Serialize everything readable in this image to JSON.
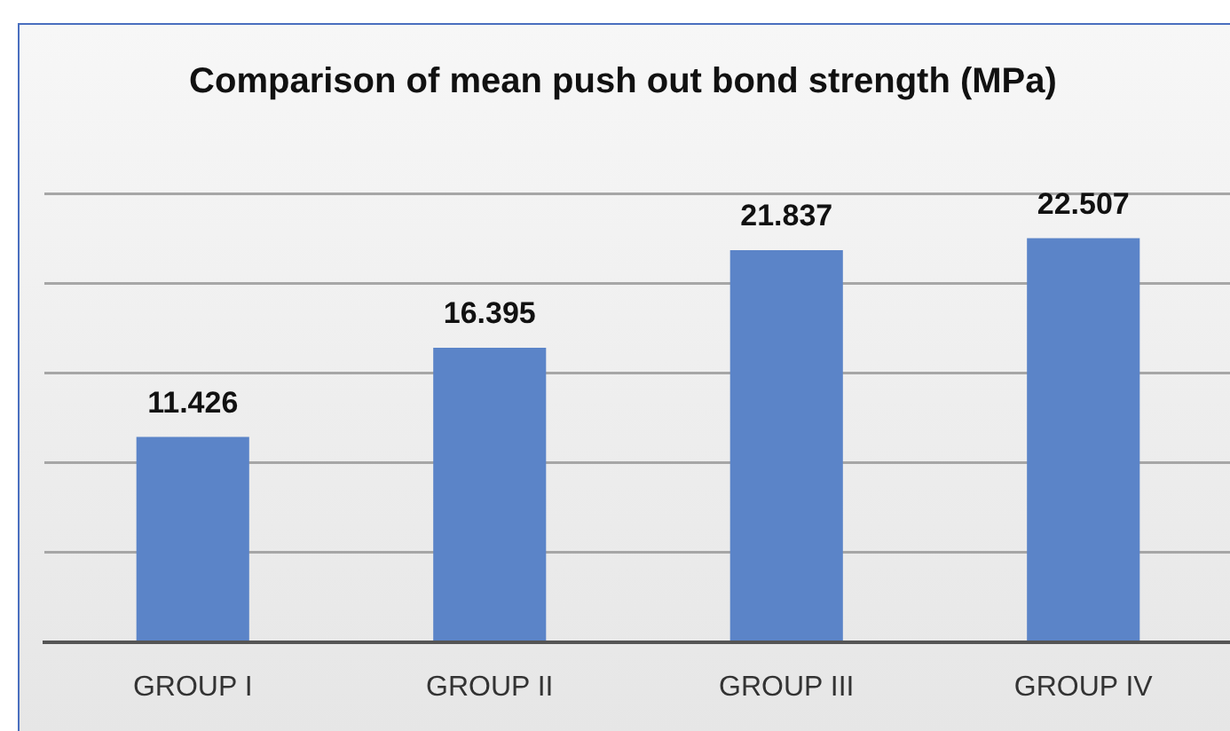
{
  "chart_data": {
    "type": "bar",
    "title": "Comparison of mean push out bond strength (MPa)",
    "categories": [
      "GROUP I",
      "GROUP II",
      "GROUP III",
      "GROUP IV"
    ],
    "values": [
      11.426,
      16.395,
      21.837,
      22.507
    ],
    "color": "#5b84c8",
    "ylim": [
      0,
      25
    ],
    "yticks": [
      {
        "value": 0,
        "label": null
      },
      {
        "value": 5,
        "label": null
      },
      {
        "value": 10,
        "label": null
      },
      {
        "value": 15,
        "label": null
      },
      {
        "value": 20,
        "label": null
      },
      {
        "value": 25,
        "label": null
      }
    ],
    "grid": "y",
    "tick_labels": "x",
    "data_labels": true
  }
}
